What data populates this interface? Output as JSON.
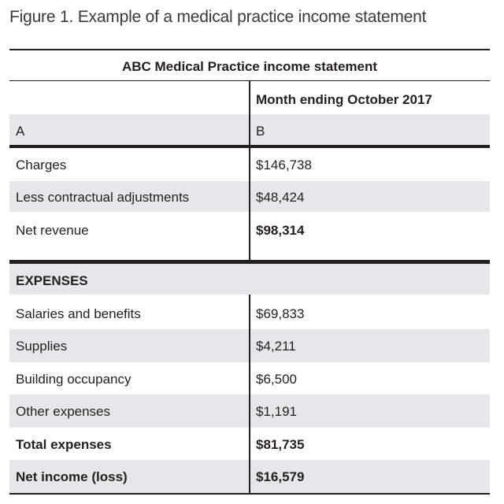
{
  "figure": {
    "caption": "Figure 1. Example of a medical practice income statement"
  },
  "table": {
    "title": "ABC Medical Practice income statement",
    "period_header": "Month ending October 2017",
    "column_letters": {
      "a": "A",
      "b": "B"
    },
    "revenue_rows": [
      {
        "label": "Charges",
        "value": "$146,738"
      },
      {
        "label": "Less contractual adjustments",
        "value": "$48,424"
      },
      {
        "label": "Net revenue",
        "value": "$98,314"
      }
    ],
    "expenses_header": "EXPENSES",
    "expense_rows": [
      {
        "label": "Salaries and benefits",
        "value": "$69,833"
      },
      {
        "label": "Supplies",
        "value": "$4,211"
      },
      {
        "label": "Building occupancy",
        "value": "$6,500"
      },
      {
        "label": "Other expenses",
        "value": "$1,191"
      },
      {
        "label": "Total expenses",
        "value": "$81,735"
      },
      {
        "label": "Net income (loss)",
        "value": "$16,579"
      }
    ]
  },
  "colors": {
    "shade": "#e6e7e8",
    "rule": "#231f20"
  }
}
